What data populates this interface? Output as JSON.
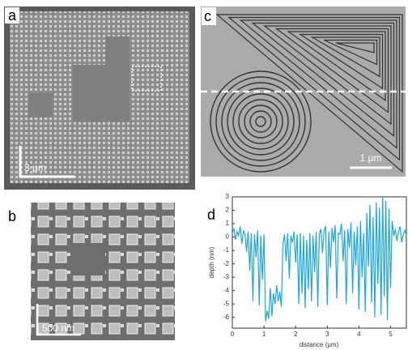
{
  "panels": {
    "a": {
      "label": "a",
      "scale_bar": "3 μm"
    },
    "b": {
      "label": "b",
      "scale_bar": "500 nm"
    },
    "c": {
      "label": "c",
      "scale_bar": "1 μm"
    },
    "d": {
      "label": "d"
    }
  },
  "chart_data": {
    "type": "line",
    "x_label": "distance (μm)",
    "y_label": "depth (nm)",
    "x": [
      0,
      0.05,
      0.1,
      0.15,
      0.2,
      0.25,
      0.3,
      0.35,
      0.4,
      0.45,
      0.5,
      0.55,
      0.6,
      0.65,
      0.7,
      0.75,
      0.8,
      0.85,
      0.9,
      0.95,
      1,
      1.05,
      1.1,
      1.15,
      1.2,
      1.25,
      1.3,
      1.35,
      1.4,
      1.45,
      1.5,
      1.55,
      1.6,
      1.65,
      1.7,
      1.75,
      1.8,
      1.85,
      1.9,
      1.95,
      2,
      2.05,
      2.1,
      2.15,
      2.2,
      2.25,
      2.3,
      2.35,
      2.4,
      2.45,
      2.5,
      2.55,
      2.6,
      2.65,
      2.7,
      2.75,
      2.8,
      2.85,
      2.9,
      2.95,
      3,
      3.05,
      3.1,
      3.15,
      3.2,
      3.25,
      3.3,
      3.35,
      3.4,
      3.45,
      3.5,
      3.55,
      3.6,
      3.65,
      3.7,
      3.75,
      3.8,
      3.85,
      3.9,
      3.95,
      4,
      4.05,
      4.1,
      4.15,
      4.2,
      4.25,
      4.3,
      4.35,
      4.4,
      4.45,
      4.5,
      4.55,
      4.6,
      4.65,
      4.7,
      4.75,
      4.8,
      4.85,
      4.9,
      4.95,
      5,
      5.05,
      5.1,
      5.15,
      5.2,
      5.25,
      5.3,
      5.35,
      5.4,
      5.45,
      5.5
    ],
    "series": [
      {
        "color": "#1aa7e0",
        "values": [
          0.3,
          0.6,
          -0.2,
          0.4,
          0.1,
          0.8,
          -0.5,
          0.5,
          0.2,
          -1.1,
          0.4,
          -2.5,
          0.3,
          -4.8,
          0.2,
          -1.5,
          0.5,
          -5.1,
          0.1,
          -3.2,
          0.2,
          -6.3,
          -5.5,
          -6.1,
          -3.8,
          -5.9,
          -4.2,
          -5.0,
          -3.6,
          -4.8,
          -4.1,
          -5.2,
          -0.5,
          0.2,
          -1.8,
          0.3,
          -3.1,
          0.1,
          -0.4,
          0.4,
          -1.9,
          0.2,
          -5.0,
          0.3,
          -4.2,
          0.1,
          -5.3,
          -0.2,
          -3.9,
          0.3,
          -4.8,
          0.1,
          -2.6,
          0.4,
          -5.2,
          0.2,
          0.6,
          -1.2,
          0.5,
          0.8,
          -5.1,
          0.4,
          -2.3,
          0.7,
          -0.4,
          0.9,
          -4.6,
          0.3,
          0.2,
          1.0,
          -1.8,
          0.5,
          -5.0,
          0.6,
          -0.8,
          1.1,
          -4.2,
          0.4,
          -2.1,
          0.8,
          -5.4,
          1.2,
          -3.0,
          0.3,
          -5.6,
          1.8,
          -2.2,
          2.4,
          -4.9,
          1.5,
          -6.0,
          2.6,
          -3.5,
          2.2,
          -5.8,
          3.0,
          -4.4,
          2.7,
          -6.2,
          2.1,
          -3.8,
          1.2,
          0.1,
          0.6,
          -0.3,
          0.4,
          0.8,
          -0.4,
          0.2,
          0.5,
          0.1
        ]
      }
    ],
    "xlim": [
      0,
      5.5
    ],
    "ylim": [
      -6.8,
      3
    ],
    "xticks": [
      0,
      1,
      2,
      3,
      4,
      5
    ],
    "yticks": [
      3,
      2,
      1,
      0,
      -1,
      -2,
      -3,
      -4,
      -5,
      -6
    ]
  }
}
